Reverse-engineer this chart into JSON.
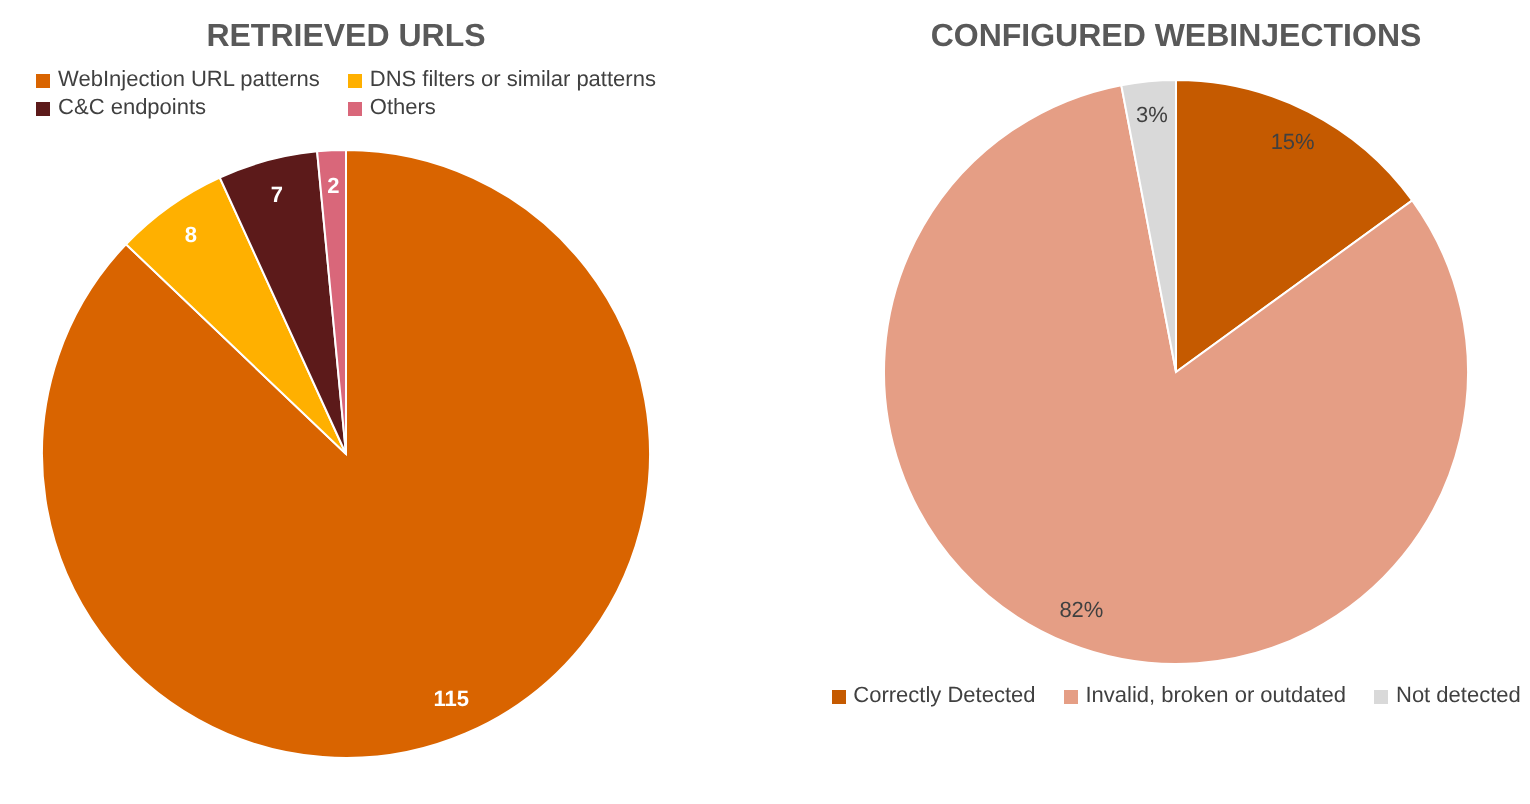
{
  "chart_data": [
    {
      "type": "pie",
      "title": "RETRIEVED URLS",
      "categories": [
        "WebInjection URL patterns",
        "DNS filters or similar patterns",
        "C&C endpoints",
        "Others"
      ],
      "values": [
        115,
        8,
        7,
        2
      ],
      "colors": [
        "#d96400",
        "#ffb000",
        "#5c1a1a",
        "#d9677a"
      ],
      "legend": "top",
      "data_labels": true
    },
    {
      "type": "pie",
      "title": "CONFIGURED WEBINJECTIONS",
      "categories": [
        "Correctly Detected",
        "Invalid, broken or outdated",
        "Not detected"
      ],
      "values": [
        15,
        82,
        3
      ],
      "value_labels": [
        "15%",
        "82%",
        "3%"
      ],
      "colors": [
        "#c55a00",
        "#e59e85",
        "#d9d9d9"
      ],
      "legend": "bottom"
    }
  ]
}
